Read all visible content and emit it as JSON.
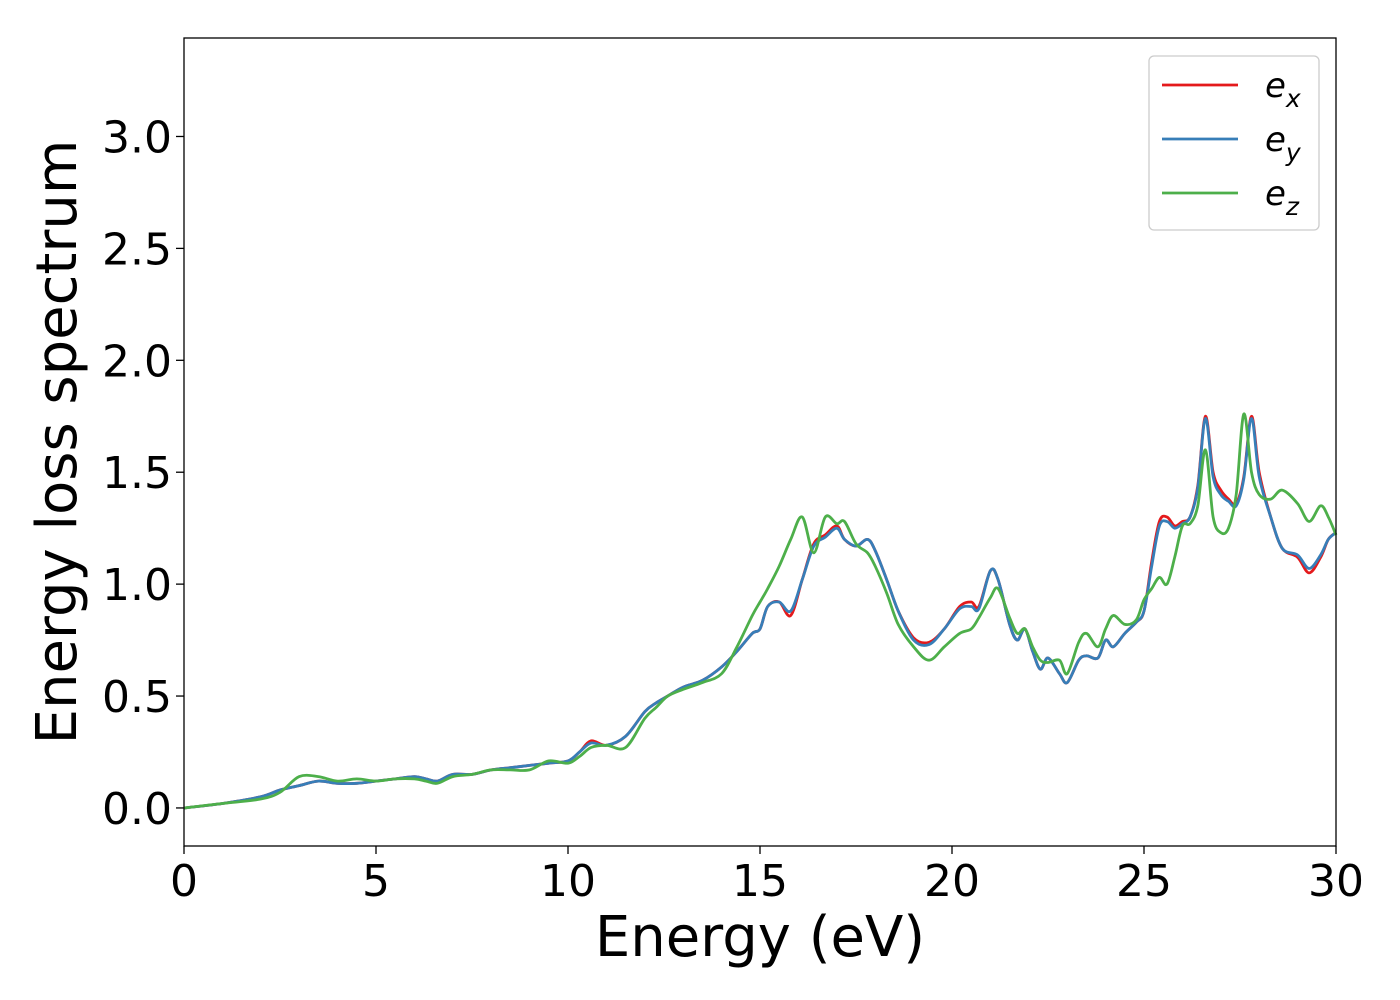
{
  "chart_data": {
    "type": "line",
    "title": "",
    "xlabel": "Energy (eV)",
    "ylabel": "Energy loss spectrum",
    "xlim": [
      0,
      30
    ],
    "ylim": [
      -0.17,
      3.44
    ],
    "xticks": [
      0,
      5,
      10,
      15,
      20,
      25,
      30
    ],
    "xtick_labels": [
      "0",
      "5",
      "10",
      "15",
      "20",
      "25",
      "30"
    ],
    "yticks": [
      0.0,
      0.5,
      1.0,
      1.5,
      2.0,
      2.5,
      3.0
    ],
    "ytick_labels": [
      "0.0",
      "0.5",
      "1.0",
      "1.5",
      "2.0",
      "2.5",
      "3.0"
    ],
    "grid": false,
    "legend_position": "top-right",
    "x": [
      0,
      1,
      2,
      2.5,
      3,
      3.5,
      4,
      4.5,
      5,
      5.5,
      6,
      6.3,
      6.6,
      7,
      7.5,
      8,
      8.5,
      9,
      9.5,
      10,
      10.3,
      10.6,
      11,
      11.5,
      12,
      12.3,
      12.6,
      13,
      13.5,
      14,
      14.4,
      14.8,
      15,
      15.2,
      15.5,
      15.8,
      16.1,
      16.4,
      16.7,
      17,
      17.2,
      17.5,
      17.8,
      18,
      18.3,
      18.6,
      19,
      19.4,
      19.8,
      20.2,
      20.5,
      20.7,
      21,
      21.2,
      21.5,
      21.7,
      21.9,
      22.1,
      22.3,
      22.5,
      22.8,
      23,
      23.3,
      23.5,
      23.8,
      24,
      24.2,
      24.5,
      24.8,
      25,
      25.2,
      25.4,
      25.6,
      25.8,
      26,
      26.2,
      26.4,
      26.6,
      26.8,
      27,
      27.2,
      27.4,
      27.6,
      27.8,
      28,
      28.3,
      28.6,
      29,
      29.3,
      29.6,
      29.8,
      30
    ],
    "series": [
      {
        "name": "e_x",
        "label_base": "e",
        "label_sub": "x",
        "color": "#e41a1c",
        "values": [
          0.0,
          0.02,
          0.05,
          0.08,
          0.1,
          0.12,
          0.11,
          0.11,
          0.12,
          0.13,
          0.14,
          0.13,
          0.12,
          0.15,
          0.15,
          0.17,
          0.18,
          0.19,
          0.2,
          0.21,
          0.25,
          0.3,
          0.28,
          0.32,
          0.43,
          0.47,
          0.5,
          0.54,
          0.57,
          0.63,
          0.7,
          0.78,
          0.8,
          0.9,
          0.92,
          0.86,
          1.02,
          1.18,
          1.22,
          1.26,
          1.2,
          1.17,
          1.2,
          1.15,
          1.02,
          0.88,
          0.76,
          0.74,
          0.8,
          0.9,
          0.92,
          0.9,
          1.06,
          1.02,
          0.82,
          0.75,
          0.8,
          0.7,
          0.62,
          0.67,
          0.6,
          0.56,
          0.66,
          0.68,
          0.67,
          0.75,
          0.72,
          0.78,
          0.83,
          0.88,
          1.1,
          1.28,
          1.3,
          1.26,
          1.28,
          1.3,
          1.44,
          1.75,
          1.5,
          1.42,
          1.38,
          1.36,
          1.48,
          1.75,
          1.5,
          1.3,
          1.16,
          1.12,
          1.05,
          1.12,
          1.2,
          1.23
        ]
      },
      {
        "name": "e_y",
        "label_base": "e",
        "label_sub": "y",
        "color": "#377eb8",
        "values": [
          0.0,
          0.02,
          0.05,
          0.08,
          0.1,
          0.12,
          0.11,
          0.11,
          0.12,
          0.13,
          0.14,
          0.13,
          0.12,
          0.15,
          0.15,
          0.17,
          0.18,
          0.19,
          0.2,
          0.21,
          0.25,
          0.29,
          0.28,
          0.32,
          0.43,
          0.47,
          0.5,
          0.54,
          0.57,
          0.63,
          0.7,
          0.78,
          0.8,
          0.9,
          0.92,
          0.88,
          1.02,
          1.17,
          1.21,
          1.25,
          1.2,
          1.17,
          1.2,
          1.15,
          1.02,
          0.88,
          0.75,
          0.73,
          0.8,
          0.89,
          0.9,
          0.89,
          1.06,
          1.02,
          0.82,
          0.75,
          0.8,
          0.7,
          0.62,
          0.67,
          0.6,
          0.56,
          0.66,
          0.68,
          0.67,
          0.75,
          0.72,
          0.78,
          0.83,
          0.88,
          1.08,
          1.26,
          1.28,
          1.25,
          1.27,
          1.3,
          1.43,
          1.74,
          1.48,
          1.4,
          1.37,
          1.35,
          1.47,
          1.74,
          1.48,
          1.3,
          1.16,
          1.13,
          1.07,
          1.13,
          1.2,
          1.23
        ]
      },
      {
        "name": "e_z",
        "label_base": "e",
        "label_sub": "z",
        "color": "#4daf4a",
        "values": [
          0.0,
          0.02,
          0.04,
          0.07,
          0.14,
          0.14,
          0.12,
          0.13,
          0.12,
          0.13,
          0.13,
          0.12,
          0.11,
          0.14,
          0.15,
          0.17,
          0.17,
          0.17,
          0.21,
          0.2,
          0.23,
          0.27,
          0.28,
          0.27,
          0.4,
          0.45,
          0.5,
          0.53,
          0.56,
          0.6,
          0.72,
          0.86,
          0.92,
          0.98,
          1.08,
          1.2,
          1.3,
          1.14,
          1.3,
          1.27,
          1.28,
          1.18,
          1.14,
          1.08,
          0.96,
          0.82,
          0.72,
          0.66,
          0.72,
          0.78,
          0.8,
          0.85,
          0.94,
          0.98,
          0.85,
          0.78,
          0.8,
          0.72,
          0.66,
          0.65,
          0.66,
          0.6,
          0.74,
          0.78,
          0.72,
          0.8,
          0.86,
          0.82,
          0.84,
          0.93,
          0.98,
          1.03,
          1.0,
          1.12,
          1.26,
          1.27,
          1.35,
          1.6,
          1.3,
          1.23,
          1.25,
          1.4,
          1.76,
          1.5,
          1.4,
          1.38,
          1.42,
          1.36,
          1.28,
          1.35,
          1.3,
          1.22
        ]
      }
    ]
  }
}
